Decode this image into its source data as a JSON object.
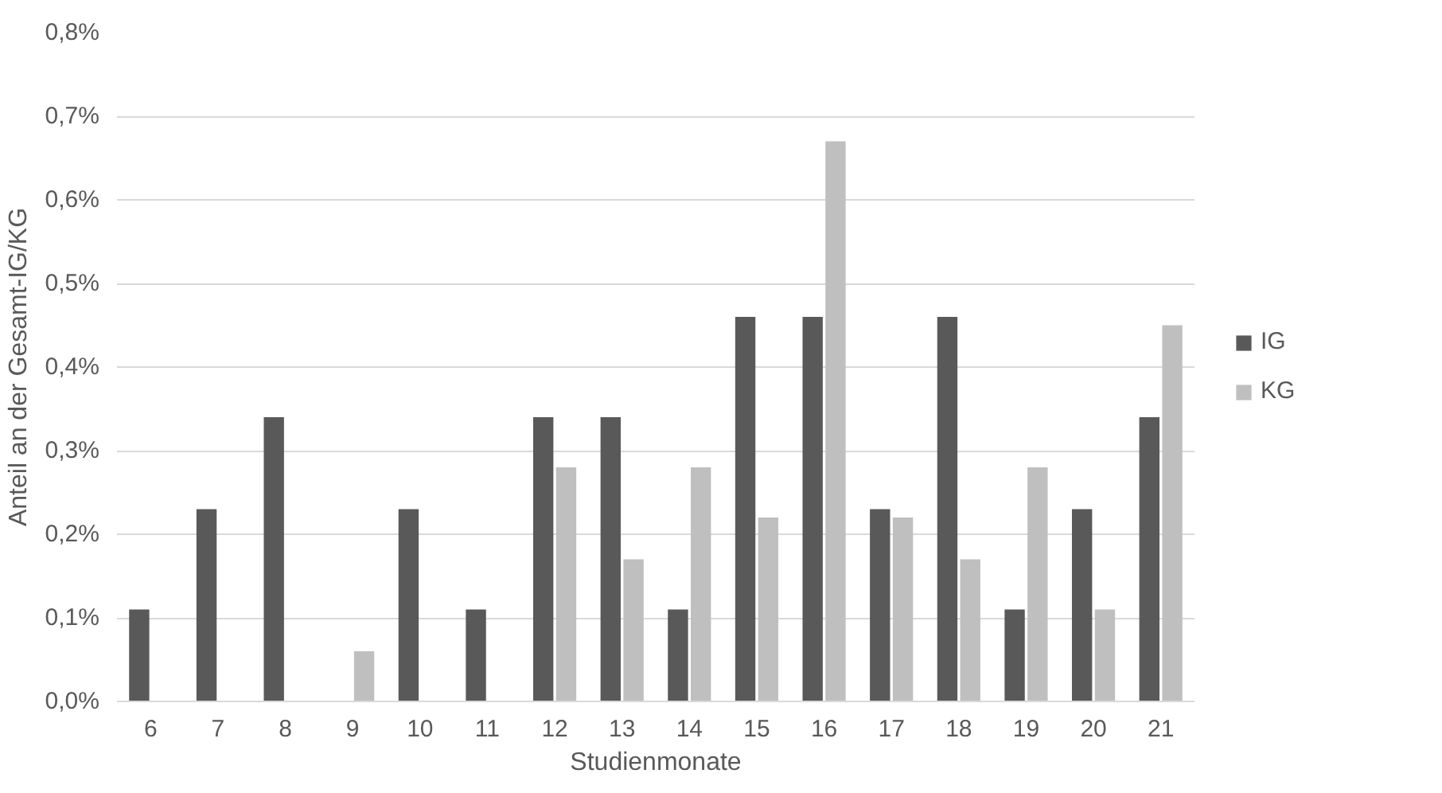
{
  "chart_data": {
    "type": "bar",
    "xlabel": "Studienmonate",
    "ylabel": "Anteil an der Gesamt-IG/KG",
    "categories": [
      "6",
      "7",
      "8",
      "9",
      "10",
      "11",
      "12",
      "13",
      "14",
      "15",
      "16",
      "17",
      "18",
      "19",
      "20",
      "21"
    ],
    "series": [
      {
        "name": "IG",
        "color": "#595959",
        "values": [
          0.11,
          0.23,
          0.34,
          0,
          0.23,
          0.11,
          0.34,
          0.34,
          0.11,
          0.46,
          0.46,
          0.23,
          0.46,
          0.11,
          0.23,
          0.34
        ]
      },
      {
        "name": "KG",
        "color": "#bfbfbf",
        "values": [
          0,
          0,
          0,
          0.06,
          0,
          0,
          0.28,
          0.17,
          0.28,
          0.22,
          0.67,
          0.22,
          0.17,
          0.28,
          0.11,
          0.45
        ]
      }
    ],
    "ylim": [
      0,
      0.8
    ],
    "yticks": [
      {
        "value": 0,
        "label": "0,0%"
      },
      {
        "value": 0.1,
        "label": "0,1%"
      },
      {
        "value": 0.2,
        "label": "0,2%"
      },
      {
        "value": 0.3,
        "label": "0,3%"
      },
      {
        "value": 0.4,
        "label": "0,4%"
      },
      {
        "value": 0.5,
        "label": "0,5%"
      },
      {
        "value": 0.6,
        "label": "0,6%"
      },
      {
        "value": 0.7,
        "label": "0,7%"
      },
      {
        "value": 0.8,
        "label": "0,8%"
      }
    ],
    "grid": "y",
    "legend": "right"
  }
}
